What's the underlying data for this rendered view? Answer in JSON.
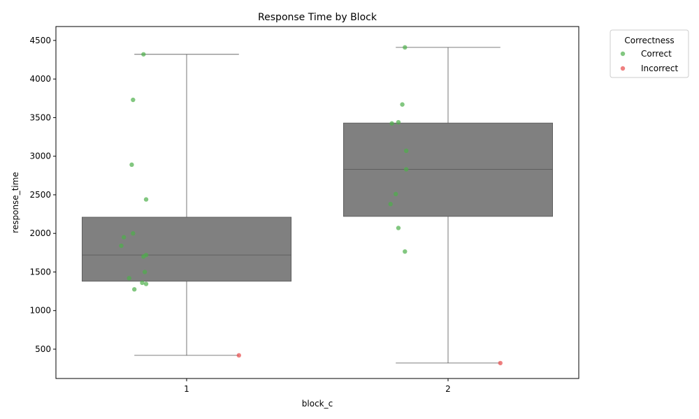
{
  "chart_data": {
    "type": "box",
    "title": "Response Time by Block",
    "xlabel": "block_c",
    "ylabel": "response_time",
    "categories": [
      "1",
      "2"
    ],
    "ylim": [
      120,
      4680
    ],
    "yticks": [
      500,
      1000,
      1500,
      2000,
      2500,
      3000,
      3500,
      4000,
      4500
    ],
    "grid": false,
    "legend": {
      "title": "Correctness",
      "placement": "outside-top-right",
      "entries": [
        {
          "label": "Correct",
          "color": "#4daf4a"
        },
        {
          "label": "Incorrect",
          "color": "#e84a4a"
        }
      ]
    },
    "boxes": [
      {
        "category": "1",
        "whisker_low": 420,
        "q1": 1380,
        "median": 1720,
        "q3": 2210,
        "whisker_high": 4320,
        "color": "#808080"
      },
      {
        "category": "2",
        "whisker_low": 320,
        "q1": 2220,
        "median": 2830,
        "q3": 3430,
        "whisker_high": 4410,
        "color": "#808080"
      }
    ],
    "series": [
      {
        "name": "Correct",
        "color": "#4daf4a",
        "points": [
          {
            "x": "1",
            "offset": -0.165,
            "y": 4320
          },
          {
            "x": "1",
            "offset": -0.205,
            "y": 3730
          },
          {
            "x": "1",
            "offset": -0.21,
            "y": 2890
          },
          {
            "x": "1",
            "offset": -0.155,
            "y": 2440
          },
          {
            "x": "1",
            "offset": -0.205,
            "y": 2000
          },
          {
            "x": "1",
            "offset": -0.24,
            "y": 1950
          },
          {
            "x": "1",
            "offset": -0.25,
            "y": 1840
          },
          {
            "x": "1",
            "offset": -0.155,
            "y": 1720
          },
          {
            "x": "1",
            "offset": -0.165,
            "y": 1700
          },
          {
            "x": "1",
            "offset": -0.16,
            "y": 1500
          },
          {
            "x": "1",
            "offset": -0.22,
            "y": 1420
          },
          {
            "x": "1",
            "offset": -0.17,
            "y": 1360
          },
          {
            "x": "1",
            "offset": -0.155,
            "y": 1345
          },
          {
            "x": "1",
            "offset": -0.2,
            "y": 1275
          },
          {
            "x": "2",
            "offset": -0.165,
            "y": 4410
          },
          {
            "x": "2",
            "offset": -0.175,
            "y": 3670
          },
          {
            "x": "2",
            "offset": -0.19,
            "y": 3440
          },
          {
            "x": "2",
            "offset": -0.215,
            "y": 3425
          },
          {
            "x": "2",
            "offset": -0.16,
            "y": 3070
          },
          {
            "x": "2",
            "offset": -0.16,
            "y": 2830
          },
          {
            "x": "2",
            "offset": -0.2,
            "y": 2510
          },
          {
            "x": "2",
            "offset": -0.22,
            "y": 2380
          },
          {
            "x": "2",
            "offset": -0.19,
            "y": 2070
          },
          {
            "x": "2",
            "offset": -0.165,
            "y": 1765
          }
        ]
      },
      {
        "name": "Incorrect",
        "color": "#e84a4a",
        "points": [
          {
            "x": "1",
            "offset": 0.2,
            "y": 420
          },
          {
            "x": "2",
            "offset": 0.2,
            "y": 320
          }
        ]
      }
    ]
  }
}
